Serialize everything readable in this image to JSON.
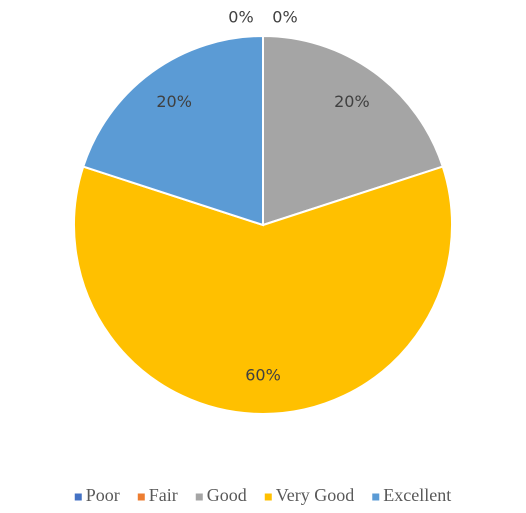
{
  "chart_data": {
    "type": "pie",
    "categories": [
      "Poor",
      "Fair",
      "Good",
      "Very Good",
      "Excellent"
    ],
    "values": [
      0,
      0,
      20,
      60,
      20
    ],
    "value_labels": [
      "0%",
      "0%",
      "20%",
      "60%",
      "20%"
    ],
    "colors": [
      "#4472c4",
      "#ed7d31",
      "#a5a5a5",
      "#ffc000",
      "#5b9bd5"
    ],
    "legend": "bottom"
  }
}
